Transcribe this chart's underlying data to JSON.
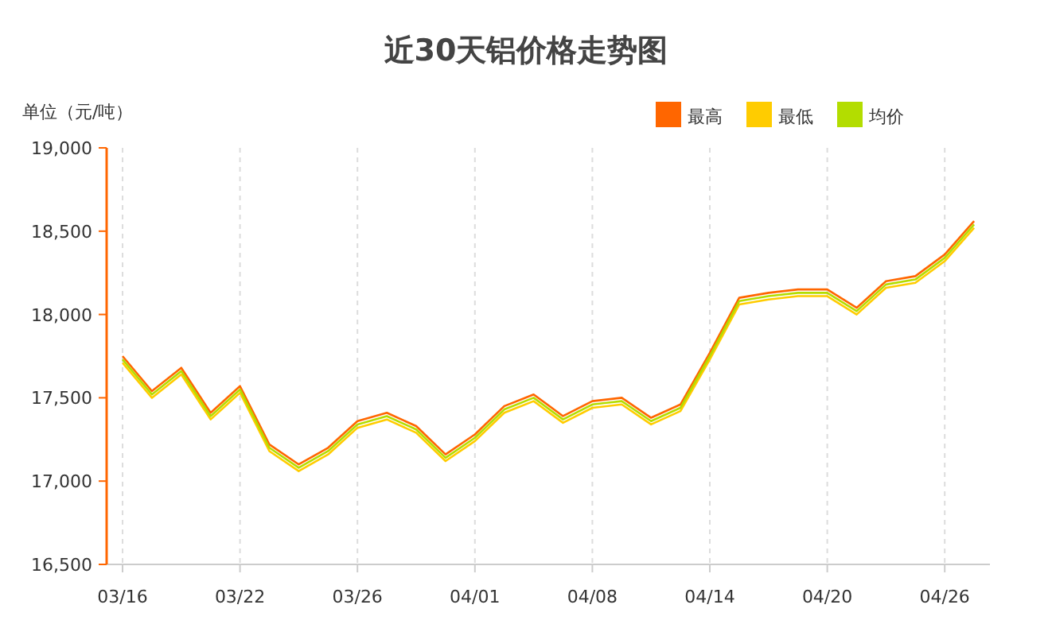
{
  "chart_data": {
    "type": "line",
    "title": "近30天铝价格走势图",
    "ylabel": "单位（元/吨）",
    "categories": [
      "03/16",
      null,
      null,
      null,
      "03/22",
      null,
      null,
      null,
      "03/26",
      null,
      null,
      null,
      "04/01",
      null,
      null,
      null,
      "04/08",
      null,
      null,
      null,
      "04/14",
      null,
      null,
      null,
      "04/20",
      null,
      null,
      null,
      "04/26",
      null
    ],
    "series": [
      {
        "name": "最高",
        "color": "#ff6600",
        "values": [
          17750,
          17540,
          17680,
          17410,
          17570,
          17220,
          17100,
          17200,
          17360,
          17410,
          17330,
          17160,
          17280,
          17450,
          17520,
          17390,
          17480,
          17500,
          17380,
          17460,
          17770,
          18100,
          18130,
          18150,
          18150,
          18040,
          18200,
          18230,
          18360,
          18560
        ]
      },
      {
        "name": "最低",
        "color": "#ffcc00",
        "values": [
          17710,
          17500,
          17640,
          17370,
          17530,
          17180,
          17060,
          17160,
          17320,
          17370,
          17290,
          17120,
          17240,
          17410,
          17480,
          17350,
          17440,
          17460,
          17340,
          17420,
          17730,
          18060,
          18090,
          18110,
          18110,
          18000,
          18160,
          18190,
          18320,
          18520
        ]
      },
      {
        "name": "均价",
        "color": "#b3dd00",
        "values": [
          17730,
          17520,
          17660,
          17390,
          17550,
          17200,
          17080,
          17180,
          17340,
          17390,
          17310,
          17140,
          17260,
          17430,
          17500,
          17370,
          17460,
          17480,
          17360,
          17440,
          17750,
          18080,
          18110,
          18130,
          18130,
          18020,
          18180,
          18210,
          18340,
          18540
        ]
      }
    ],
    "ylim": [
      16500,
      19000
    ],
    "yticks": [
      {
        "value": 16500,
        "label": "16,500"
      },
      {
        "value": 17000,
        "label": "17,000"
      },
      {
        "value": 17500,
        "label": "17,500"
      },
      {
        "value": 18000,
        "label": "18,000"
      },
      {
        "value": 18500,
        "label": "18,500"
      },
      {
        "value": 19000,
        "label": "19,000"
      }
    ],
    "grid": "x",
    "legend": "top right",
    "marker": "none",
    "line_style": "solid"
  }
}
